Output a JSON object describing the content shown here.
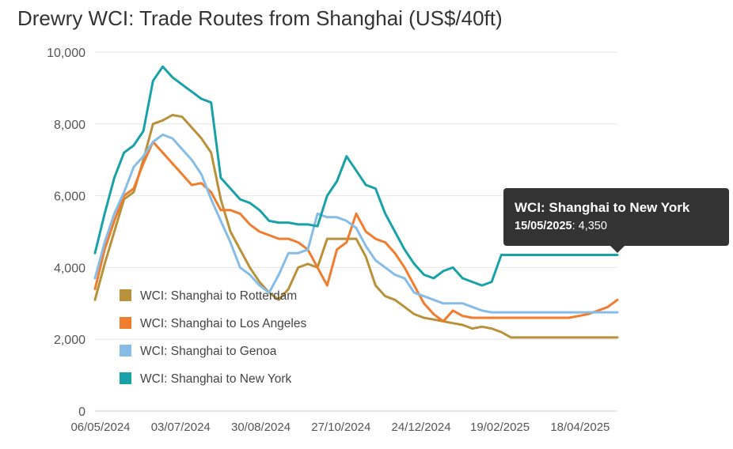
{
  "chart_data": {
    "type": "line",
    "title": "Drewry WCI: Trade Routes from Shanghai (US$/40ft)",
    "xlabel": "",
    "ylabel": "",
    "ylim": [
      0,
      10000
    ],
    "yticks": [
      0,
      2000,
      4000,
      6000,
      8000,
      10000
    ],
    "ytick_labels": [
      "0",
      "2,000",
      "4,000",
      "6,000",
      "8,000",
      "10,000"
    ],
    "x_tick_labels": [
      "06/05/2024",
      "03/07/2024",
      "30/08/2024",
      "27/10/2024",
      "24/12/2024",
      "19/02/2025",
      "18/04/2025"
    ],
    "x_note": "weekly index points, first 2024-05-02, last 2025-05-15",
    "grid": true,
    "legend_position": "bottom-left",
    "x": [
      "02/05/2024",
      "09/05/2024",
      "16/05/2024",
      "23/05/2024",
      "30/05/2024",
      "06/06/2024",
      "13/06/2024",
      "20/06/2024",
      "27/06/2024",
      "04/07/2024",
      "11/07/2024",
      "18/07/2024",
      "25/07/2024",
      "01/08/2024",
      "08/08/2024",
      "15/08/2024",
      "22/08/2024",
      "29/08/2024",
      "05/09/2024",
      "12/09/2024",
      "19/09/2024",
      "26/09/2024",
      "03/10/2024",
      "10/10/2024",
      "17/10/2024",
      "24/10/2024",
      "31/10/2024",
      "07/11/2024",
      "14/11/2024",
      "21/11/2024",
      "28/11/2024",
      "05/12/2024",
      "12/12/2024",
      "19/12/2024",
      "26/12/2024",
      "02/01/2025",
      "09/01/2025",
      "16/01/2025",
      "23/01/2025",
      "30/01/2025",
      "06/02/2025",
      "13/02/2025",
      "20/02/2025",
      "27/02/2025",
      "06/03/2025",
      "13/03/2025",
      "20/03/2025",
      "27/03/2025",
      "03/04/2025",
      "10/04/2025",
      "17/04/2025",
      "24/04/2025",
      "01/05/2025",
      "08/05/2025",
      "15/05/2025"
    ],
    "series": [
      {
        "name": "WCI: Shanghai to Rotterdam",
        "color": "#B8913A",
        "values": [
          3100,
          4100,
          5000,
          5900,
          6100,
          7000,
          8000,
          8100,
          8250,
          8200,
          7900,
          7600,
          7200,
          5900,
          5000,
          4500,
          4000,
          3600,
          3300,
          3100,
          3400,
          4000,
          4100,
          4000,
          4800,
          4800,
          4800,
          4800,
          4300,
          3500,
          3200,
          3100,
          2900,
          2700,
          2600,
          2550,
          2500,
          2450,
          2400,
          2300,
          2350,
          2300,
          2200,
          2050,
          2050,
          2050,
          2050,
          2050,
          2050,
          2050,
          2050,
          2050,
          2050,
          2050,
          2050
        ]
      },
      {
        "name": "WCI: Shanghai to Los Angeles",
        "color": "#F07C2E",
        "values": [
          3400,
          4500,
          5300,
          6000,
          6200,
          6900,
          7500,
          7200,
          6900,
          6600,
          6300,
          6350,
          6100,
          5600,
          5600,
          5500,
          5200,
          5000,
          4900,
          4800,
          4800,
          4700,
          4500,
          4000,
          3500,
          4500,
          4700,
          5500,
          5000,
          4800,
          4700,
          4400,
          4000,
          3500,
          3000,
          2700,
          2500,
          2800,
          2650,
          2600,
          2600,
          2600,
          2600,
          2600,
          2600,
          2600,
          2600,
          2600,
          2600,
          2600,
          2650,
          2700,
          2800,
          2900,
          3100
        ]
      },
      {
        "name": "WCI: Shanghai to Genoa",
        "color": "#86BCE5",
        "values": [
          3700,
          4700,
          5500,
          6100,
          6800,
          7100,
          7500,
          7700,
          7600,
          7300,
          7000,
          6600,
          5900,
          5300,
          4700,
          4000,
          3800,
          3500,
          3300,
          3800,
          4400,
          4400,
          4500,
          5500,
          5400,
          5400,
          5300,
          5100,
          4600,
          4200,
          4000,
          3800,
          3700,
          3300,
          3200,
          3100,
          3000,
          3000,
          3000,
          2900,
          2800,
          2750,
          2750,
          2750,
          2750,
          2750,
          2750,
          2750,
          2750,
          2750,
          2750,
          2750,
          2750,
          2750,
          2750
        ]
      },
      {
        "name": "WCI: Shanghai to New York",
        "color": "#18A2A8",
        "values": [
          4400,
          5500,
          6500,
          7200,
          7400,
          7800,
          9200,
          9600,
          9300,
          9100,
          8900,
          8700,
          8600,
          6500,
          6200,
          5900,
          5800,
          5600,
          5300,
          5250,
          5250,
          5200,
          5200,
          5150,
          6000,
          6400,
          7100,
          6700,
          6300,
          6200,
          5500,
          5000,
          4500,
          4100,
          3800,
          3700,
          3900,
          4000,
          3700,
          3600,
          3500,
          3600,
          4350,
          4350,
          4350,
          4350,
          4350,
          4350,
          4350,
          4350,
          4350,
          4350,
          4350,
          4350,
          4350
        ]
      }
    ],
    "tooltip": {
      "series": "WCI: Shanghai to New York",
      "date": "15/05/2025",
      "value_label": "4,350",
      "point_index": 54
    }
  }
}
